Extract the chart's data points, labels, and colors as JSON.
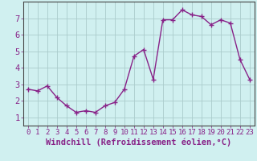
{
  "x": [
    0,
    1,
    2,
    3,
    4,
    5,
    6,
    7,
    8,
    9,
    10,
    11,
    12,
    13,
    14,
    15,
    16,
    17,
    18,
    19,
    20,
    21,
    22,
    23
  ],
  "y": [
    2.7,
    2.6,
    2.9,
    2.2,
    1.7,
    1.3,
    1.4,
    1.3,
    1.7,
    1.9,
    2.7,
    4.7,
    5.1,
    3.3,
    6.9,
    6.9,
    7.5,
    7.2,
    7.1,
    6.6,
    6.9,
    6.7,
    4.5,
    3.3
  ],
  "xlabel": "Windchill (Refroidissement éolien,°C)",
  "ylim": [
    0.5,
    8.0
  ],
  "xlim": [
    -0.5,
    23.5
  ],
  "yticks": [
    1,
    2,
    3,
    4,
    5,
    6,
    7
  ],
  "xticks": [
    0,
    1,
    2,
    3,
    4,
    5,
    6,
    7,
    8,
    9,
    10,
    11,
    12,
    13,
    14,
    15,
    16,
    17,
    18,
    19,
    20,
    21,
    22,
    23
  ],
  "line_color": "#882288",
  "marker": "+",
  "marker_size": 4,
  "bg_color": "#d0f0f0",
  "grid_color": "#aacccc",
  "axis_label_color": "#882288",
  "tick_color": "#882288",
  "xlabel_fontsize": 7.5,
  "tick_fontsize": 6.5,
  "ytick_fontsize": 7.5,
  "linewidth": 1.0
}
